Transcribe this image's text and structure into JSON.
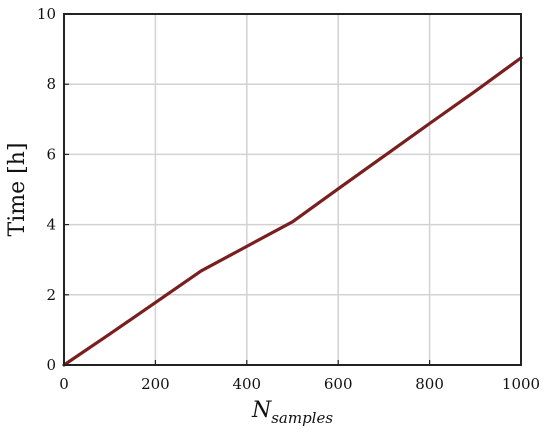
{
  "chart_data": {
    "type": "line",
    "xlabel_main": "N",
    "xlabel_sub": "samples",
    "ylabel": "Time [h]",
    "xlim": [
      0,
      1000
    ],
    "ylim": [
      0,
      10
    ],
    "xticks": [
      0,
      200,
      400,
      600,
      800,
      1000
    ],
    "yticks": [
      0,
      2,
      4,
      6,
      8,
      10
    ],
    "grid": true,
    "series": [
      {
        "color": "#7a1f1f",
        "x": [
          0,
          100,
          200,
          300,
          400,
          500,
          600,
          700,
          800,
          900,
          1000
        ],
        "y": [
          0,
          0.88,
          1.78,
          2.68,
          3.38,
          4.08,
          5.02,
          5.95,
          6.88,
          7.8,
          8.75
        ]
      }
    ]
  }
}
